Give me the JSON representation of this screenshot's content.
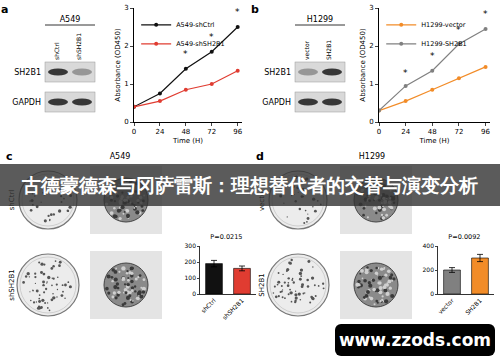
{
  "chart_data": [
    {
      "type": "line",
      "xlabel": "Time (H)",
      "ylabel": "Absorbance (OD450)",
      "x": [
        0,
        24,
        48,
        72,
        96
      ],
      "series": [
        {
          "name": "A549-shCtrl",
          "color": "#111111",
          "values": [
            0.4,
            0.75,
            1.4,
            1.85,
            2.5
          ]
        },
        {
          "name": "A549-shSH2B1",
          "color": "#e03c31",
          "values": [
            0.4,
            0.55,
            0.85,
            1.0,
            1.35
          ]
        }
      ],
      "xlim": [
        0,
        100
      ],
      "xticks": [
        0,
        24,
        48,
        72,
        96
      ],
      "ylim": [
        0,
        3
      ],
      "yticks": [
        0,
        1,
        2,
        3
      ],
      "grid": false,
      "legend": "upper left",
      "annotations": [
        {
          "x": 48,
          "y": 1.6,
          "text": "*"
        },
        {
          "x": 72,
          "y": 2.05,
          "text": "*"
        },
        {
          "x": 96,
          "y": 2.7,
          "text": "*"
        }
      ]
    },
    {
      "type": "line",
      "xlabel": "Time (H)",
      "ylabel": "Absorbance (OD450)",
      "x": [
        0,
        24,
        48,
        72,
        96
      ],
      "series": [
        {
          "name": "H1299-vector",
          "color": "#f28c28",
          "values": [
            0.3,
            0.55,
            0.85,
            1.15,
            1.45
          ]
        },
        {
          "name": "H1299-SH2B1",
          "color": "#808080",
          "values": [
            0.3,
            0.95,
            1.35,
            2.05,
            2.45
          ]
        }
      ],
      "xlim": [
        0,
        100
      ],
      "xticks": [
        0,
        24,
        48,
        72,
        96
      ],
      "ylim": [
        0,
        3
      ],
      "yticks": [
        0,
        1,
        2,
        3
      ],
      "grid": false,
      "legend": "upper left",
      "annotations": [
        {
          "x": 24,
          "y": 1.1,
          "text": "*"
        },
        {
          "x": 48,
          "y": 1.55,
          "text": "*"
        },
        {
          "x": 72,
          "y": 2.25,
          "text": "*"
        },
        {
          "x": 96,
          "y": 2.65,
          "text": "*"
        }
      ]
    },
    {
      "type": "bar",
      "title": "P=0.0215",
      "categories": [
        "shCtrl",
        "shSH2B1"
      ],
      "values": [
        190,
        160
      ],
      "errors": [
        20,
        15
      ],
      "colors": [
        "#111111",
        "#e03c31"
      ],
      "ylim": [
        0,
        300
      ],
      "yticks": [
        0,
        100,
        200,
        300
      ],
      "grid": false
    },
    {
      "type": "bar",
      "title": "P=0.0092",
      "categories": [
        "vector",
        "SH2B1"
      ],
      "values": [
        200,
        300
      ],
      "errors": [
        20,
        30
      ],
      "colors": [
        "#808080",
        "#f28c28"
      ],
      "ylim": [
        0,
        400
      ],
      "yticks": [
        0,
        200,
        400
      ],
      "grid": false
    }
  ],
  "panels": {
    "a": {
      "letter": "a",
      "cell_line": "A549",
      "lanes": [
        "shCtrl",
        "shSH2B1"
      ],
      "rows": [
        "SH2B1",
        "GAPDH"
      ]
    },
    "b": {
      "letter": "b",
      "cell_line": "H1299",
      "lanes": [
        "vector",
        "SH2B1"
      ],
      "rows": [
        "SH2B1",
        "GAPDH"
      ]
    },
    "c": {
      "letter": "c",
      "title": "A549",
      "rows": [
        "shCtrl",
        "shSH2B1"
      ]
    },
    "d": {
      "letter": "d",
      "title": "H1299",
      "rows": [
        "vector",
        "SH2B1"
      ]
    }
  },
  "banner": "古德蒙德森与冈萨雷斯：理想替代者的交替与演变分析",
  "watermark": "www.zzods.com"
}
